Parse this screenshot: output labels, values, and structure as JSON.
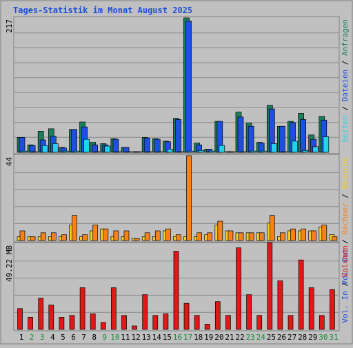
{
  "title": "Tages-Statistik im Monat August 2025",
  "colors": {
    "background": "#c0c0c0",
    "border": "#7f7f7f",
    "grid": "#8a8a8a",
    "title": "#1a4fd8",
    "hits": "#1a7f5a",
    "files": "#1f4fdf",
    "pages": "#22d3ee",
    "visits": "#f5d020",
    "sites": "#f7821b",
    "kbytes": "#e01818",
    "weekday_label": "#000000",
    "weekend_label": "#1a8a3a"
  },
  "chart_data": [
    {
      "type": "bar",
      "name": "requests-panel",
      "ymax_label": "217",
      "ylim": [
        0,
        217
      ],
      "grid": true,
      "legend_placement": "right-vertical",
      "legend": [
        "Anfragen",
        "Dateien",
        "Seiten"
      ],
      "legend_separator": " / ",
      "categories": [
        "1",
        "2",
        "3",
        "4",
        "5",
        "6",
        "7",
        "8",
        "9",
        "10",
        "11",
        "12",
        "13",
        "14",
        "15",
        "16",
        "17",
        "18",
        "19",
        "20",
        "21",
        "22",
        "23",
        "24",
        "25",
        "26",
        "27",
        "28",
        "29",
        "30",
        "31"
      ],
      "series": [
        {
          "name": "Anfragen",
          "color_key": "hits",
          "values": [
            24,
            12,
            34,
            38,
            8,
            37,
            49,
            16,
            14,
            22,
            8,
            1,
            24,
            22,
            18,
            55,
            217,
            15,
            5,
            50,
            1,
            65,
            47,
            16,
            76,
            42,
            50,
            63,
            28,
            58,
            0
          ]
        },
        {
          "name": "Dateien",
          "color_key": "files",
          "values": [
            24,
            11,
            20,
            26,
            7,
            37,
            41,
            12,
            12,
            21,
            8,
            1,
            23,
            21,
            17,
            53,
            212,
            12,
            5,
            50,
            1,
            57,
            42,
            15,
            70,
            42,
            48,
            53,
            21,
            52,
            0
          ]
        },
        {
          "name": "Seiten",
          "color_key": "pages",
          "values": [
            2,
            1,
            11,
            14,
            2,
            2,
            21,
            1,
            10,
            1,
            1,
            1,
            1,
            1,
            5,
            1,
            2,
            3,
            2,
            11,
            1,
            1,
            2,
            2,
            14,
            1,
            18,
            3,
            9,
            25,
            0
          ]
        }
      ]
    },
    {
      "type": "bar",
      "name": "visits-panel",
      "ymax_label": "44",
      "ylim": [
        0,
        44
      ],
      "grid": true,
      "legend_placement": "right-vertical",
      "legend": [
        "Besuche",
        "Rechner",
        "Vol. Out"
      ],
      "legend_separator": " / ",
      "categories": [
        "1",
        "2",
        "3",
        "4",
        "5",
        "6",
        "7",
        "8",
        "9",
        "10",
        "11",
        "12",
        "13",
        "14",
        "15",
        "16",
        "17",
        "18",
        "19",
        "20",
        "21",
        "22",
        "23",
        "24",
        "25",
        "26",
        "27",
        "28",
        "29",
        "30",
        "31"
      ],
      "series": [
        {
          "name": "Besuche",
          "color_key": "visits",
          "values": [
            2,
            2,
            2,
            2,
            2,
            8,
            2,
            5,
            6,
            2,
            2,
            1,
            2,
            2,
            5,
            2,
            2,
            2,
            3,
            8,
            5,
            4,
            4,
            4,
            9,
            2,
            5,
            5,
            5,
            7,
            3
          ]
        },
        {
          "name": "Rechner",
          "color_key": "sites",
          "values": [
            5,
            2,
            4,
            4,
            3,
            13,
            3,
            8,
            6,
            5,
            5,
            1,
            4,
            5,
            6,
            3,
            44,
            4,
            4,
            10,
            5,
            4,
            4,
            4,
            13,
            4,
            6,
            6,
            5,
            8,
            2
          ]
        }
      ]
    },
    {
      "type": "bar",
      "name": "volume-panel",
      "ymax_label": "49.22 MB",
      "ylim": [
        0,
        49.22
      ],
      "grid": true,
      "legend_placement": "right-vertical",
      "legend": [
        "Volumen",
        "Vol. In"
      ],
      "legend_separator": " / ",
      "categories": [
        "1",
        "2",
        "3",
        "4",
        "5",
        "6",
        "7",
        "8",
        "9",
        "10",
        "11",
        "12",
        "13",
        "14",
        "15",
        "16",
        "17",
        "18",
        "19",
        "20",
        "21",
        "22",
        "23",
        "24",
        "25",
        "26",
        "27",
        "28",
        "29",
        "30",
        "31"
      ],
      "series": [
        {
          "name": "Volumen",
          "color_key": "kbytes",
          "values": [
            12,
            7,
            18,
            14,
            7,
            8,
            24,
            9,
            4,
            24,
            8,
            2,
            20,
            8,
            9,
            45,
            15,
            8,
            3,
            16,
            8,
            47,
            20,
            8,
            50,
            28,
            8,
            40,
            24,
            8,
            23
          ]
        }
      ]
    }
  ],
  "weekend_days": [
    2,
    3,
    9,
    10,
    16,
    17,
    23,
    24,
    30,
    31
  ]
}
